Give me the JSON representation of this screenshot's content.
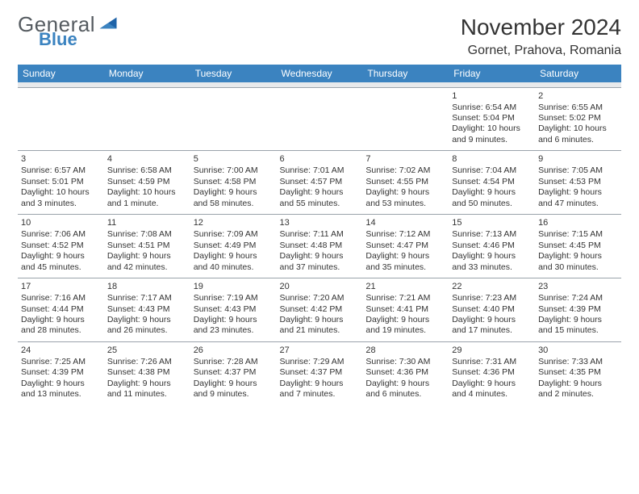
{
  "brand": {
    "word1": "General",
    "word2": "Blue",
    "color_gray": "#555b60",
    "color_blue": "#3b83c0"
  },
  "header": {
    "month": "November 2024",
    "location": "Gornet, Prahova, Romania"
  },
  "colors": {
    "header_bg": "#3b83c0",
    "header_fg": "#ffffff",
    "grid_line": "#9aa3ab",
    "strip": "#e8eaec",
    "text": "#333333"
  },
  "weekdays": [
    "Sunday",
    "Monday",
    "Tuesday",
    "Wednesday",
    "Thursday",
    "Friday",
    "Saturday"
  ],
  "weeks": [
    [
      null,
      null,
      null,
      null,
      null,
      {
        "n": "1",
        "sunrise": "6:54 AM",
        "sunset": "5:04 PM",
        "daylight": "10 hours and 9 minutes."
      },
      {
        "n": "2",
        "sunrise": "6:55 AM",
        "sunset": "5:02 PM",
        "daylight": "10 hours and 6 minutes."
      }
    ],
    [
      {
        "n": "3",
        "sunrise": "6:57 AM",
        "sunset": "5:01 PM",
        "daylight": "10 hours and 3 minutes."
      },
      {
        "n": "4",
        "sunrise": "6:58 AM",
        "sunset": "4:59 PM",
        "daylight": "10 hours and 1 minute."
      },
      {
        "n": "5",
        "sunrise": "7:00 AM",
        "sunset": "4:58 PM",
        "daylight": "9 hours and 58 minutes."
      },
      {
        "n": "6",
        "sunrise": "7:01 AM",
        "sunset": "4:57 PM",
        "daylight": "9 hours and 55 minutes."
      },
      {
        "n": "7",
        "sunrise": "7:02 AM",
        "sunset": "4:55 PM",
        "daylight": "9 hours and 53 minutes."
      },
      {
        "n": "8",
        "sunrise": "7:04 AM",
        "sunset": "4:54 PM",
        "daylight": "9 hours and 50 minutes."
      },
      {
        "n": "9",
        "sunrise": "7:05 AM",
        "sunset": "4:53 PM",
        "daylight": "9 hours and 47 minutes."
      }
    ],
    [
      {
        "n": "10",
        "sunrise": "7:06 AM",
        "sunset": "4:52 PM",
        "daylight": "9 hours and 45 minutes."
      },
      {
        "n": "11",
        "sunrise": "7:08 AM",
        "sunset": "4:51 PM",
        "daylight": "9 hours and 42 minutes."
      },
      {
        "n": "12",
        "sunrise": "7:09 AM",
        "sunset": "4:49 PM",
        "daylight": "9 hours and 40 minutes."
      },
      {
        "n": "13",
        "sunrise": "7:11 AM",
        "sunset": "4:48 PM",
        "daylight": "9 hours and 37 minutes."
      },
      {
        "n": "14",
        "sunrise": "7:12 AM",
        "sunset": "4:47 PM",
        "daylight": "9 hours and 35 minutes."
      },
      {
        "n": "15",
        "sunrise": "7:13 AM",
        "sunset": "4:46 PM",
        "daylight": "9 hours and 33 minutes."
      },
      {
        "n": "16",
        "sunrise": "7:15 AM",
        "sunset": "4:45 PM",
        "daylight": "9 hours and 30 minutes."
      }
    ],
    [
      {
        "n": "17",
        "sunrise": "7:16 AM",
        "sunset": "4:44 PM",
        "daylight": "9 hours and 28 minutes."
      },
      {
        "n": "18",
        "sunrise": "7:17 AM",
        "sunset": "4:43 PM",
        "daylight": "9 hours and 26 minutes."
      },
      {
        "n": "19",
        "sunrise": "7:19 AM",
        "sunset": "4:43 PM",
        "daylight": "9 hours and 23 minutes."
      },
      {
        "n": "20",
        "sunrise": "7:20 AM",
        "sunset": "4:42 PM",
        "daylight": "9 hours and 21 minutes."
      },
      {
        "n": "21",
        "sunrise": "7:21 AM",
        "sunset": "4:41 PM",
        "daylight": "9 hours and 19 minutes."
      },
      {
        "n": "22",
        "sunrise": "7:23 AM",
        "sunset": "4:40 PM",
        "daylight": "9 hours and 17 minutes."
      },
      {
        "n": "23",
        "sunrise": "7:24 AM",
        "sunset": "4:39 PM",
        "daylight": "9 hours and 15 minutes."
      }
    ],
    [
      {
        "n": "24",
        "sunrise": "7:25 AM",
        "sunset": "4:39 PM",
        "daylight": "9 hours and 13 minutes."
      },
      {
        "n": "25",
        "sunrise": "7:26 AM",
        "sunset": "4:38 PM",
        "daylight": "9 hours and 11 minutes."
      },
      {
        "n": "26",
        "sunrise": "7:28 AM",
        "sunset": "4:37 PM",
        "daylight": "9 hours and 9 minutes."
      },
      {
        "n": "27",
        "sunrise": "7:29 AM",
        "sunset": "4:37 PM",
        "daylight": "9 hours and 7 minutes."
      },
      {
        "n": "28",
        "sunrise": "7:30 AM",
        "sunset": "4:36 PM",
        "daylight": "9 hours and 6 minutes."
      },
      {
        "n": "29",
        "sunrise": "7:31 AM",
        "sunset": "4:36 PM",
        "daylight": "9 hours and 4 minutes."
      },
      {
        "n": "30",
        "sunrise": "7:33 AM",
        "sunset": "4:35 PM",
        "daylight": "9 hours and 2 minutes."
      }
    ]
  ],
  "labels": {
    "sunrise_prefix": "Sunrise: ",
    "sunset_prefix": "Sunset: ",
    "daylight_prefix": "Daylight: "
  }
}
